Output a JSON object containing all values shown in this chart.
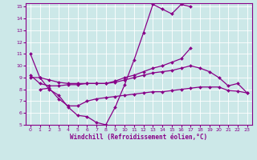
{
  "background_color": "#cce8e8",
  "line_color": "#880088",
  "grid_color": "#ffffff",
  "xlabel": "Windchill (Refroidissement éolien,°C)",
  "xlim": [
    -0.5,
    23.5
  ],
  "ylim": [
    5,
    15.3
  ],
  "yticks": [
    5,
    6,
    7,
    8,
    9,
    10,
    11,
    12,
    13,
    14,
    15
  ],
  "xticks": [
    0,
    1,
    2,
    3,
    4,
    5,
    6,
    7,
    8,
    9,
    10,
    11,
    12,
    13,
    14,
    15,
    16,
    17,
    18,
    19,
    20,
    21,
    22,
    23
  ],
  "series1_x": [
    0,
    1,
    2,
    3,
    4,
    5,
    6,
    7,
    8,
    9,
    10,
    11,
    12,
    13,
    14,
    15,
    16,
    17
  ],
  "series1_y": [
    11,
    9,
    8,
    7.5,
    6.5,
    5.8,
    5.7,
    5.2,
    5.0,
    6.5,
    8.4,
    10.5,
    12.8,
    15.2,
    14.8,
    14.4,
    15.2,
    15.0
  ],
  "series2_x": [
    0,
    1,
    2,
    3,
    4,
    5,
    6,
    7,
    8,
    9,
    10,
    11,
    12,
    13,
    14,
    15,
    16,
    17,
    18,
    19,
    20,
    21,
    22,
    23
  ],
  "series2_y": [
    9.0,
    9.0,
    8.8,
    8.6,
    8.5,
    8.5,
    8.5,
    8.5,
    8.5,
    8.6,
    8.8,
    9.0,
    9.2,
    9.4,
    9.5,
    9.6,
    9.8,
    10.0,
    9.8,
    9.5,
    9.0,
    8.3,
    8.5,
    7.7
  ],
  "series3_x": [
    1,
    2,
    3,
    4,
    5,
    6,
    7,
    8,
    9,
    10,
    11,
    12,
    13,
    14,
    15,
    16,
    17,
    18,
    19,
    20,
    21,
    22,
    23
  ],
  "series3_y": [
    8.0,
    8.1,
    7.2,
    6.6,
    6.6,
    7.0,
    7.2,
    7.3,
    7.4,
    7.5,
    7.6,
    7.7,
    7.8,
    7.8,
    7.9,
    8.0,
    8.1,
    8.2,
    8.2,
    8.2,
    7.9,
    7.85,
    7.7
  ],
  "series4_x": [
    0,
    1,
    2,
    3,
    4,
    5,
    6,
    7,
    8,
    9,
    10,
    11,
    12,
    13,
    14,
    15,
    16,
    17
  ],
  "series4_y": [
    9.2,
    8.5,
    8.3,
    8.3,
    8.4,
    8.4,
    8.5,
    8.5,
    8.5,
    8.7,
    9.0,
    9.2,
    9.5,
    9.8,
    10.0,
    10.3,
    10.6,
    11.5
  ]
}
